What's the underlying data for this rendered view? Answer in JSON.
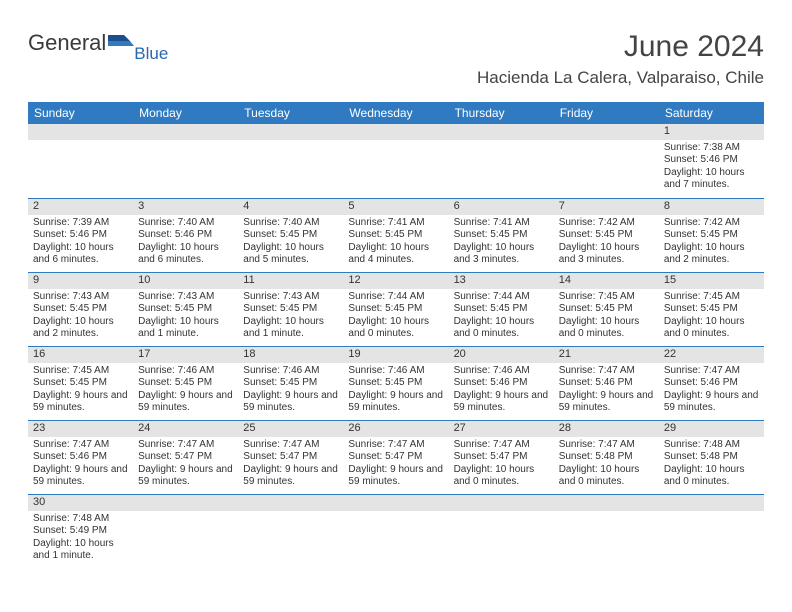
{
  "brand": {
    "main": "General",
    "sub": "Blue"
  },
  "title": "June 2024",
  "location": "Hacienda La Calera, Valparaiso, Chile",
  "colors": {
    "header_bg": "#2f7ac0",
    "header_fg": "#ffffff",
    "daynum_bg": "#e4e4e4",
    "text": "#333333",
    "brand_blue": "#2968b2"
  },
  "weekdays": [
    "Sunday",
    "Monday",
    "Tuesday",
    "Wednesday",
    "Thursday",
    "Friday",
    "Saturday"
  ],
  "weeks": [
    [
      null,
      null,
      null,
      null,
      null,
      null,
      {
        "n": "1",
        "sr": "Sunrise: 7:38 AM",
        "ss": "Sunset: 5:46 PM",
        "dl": "Daylight: 10 hours and 7 minutes."
      }
    ],
    [
      {
        "n": "2",
        "sr": "Sunrise: 7:39 AM",
        "ss": "Sunset: 5:46 PM",
        "dl": "Daylight: 10 hours and 6 minutes."
      },
      {
        "n": "3",
        "sr": "Sunrise: 7:40 AM",
        "ss": "Sunset: 5:46 PM",
        "dl": "Daylight: 10 hours and 6 minutes."
      },
      {
        "n": "4",
        "sr": "Sunrise: 7:40 AM",
        "ss": "Sunset: 5:45 PM",
        "dl": "Daylight: 10 hours and 5 minutes."
      },
      {
        "n": "5",
        "sr": "Sunrise: 7:41 AM",
        "ss": "Sunset: 5:45 PM",
        "dl": "Daylight: 10 hours and 4 minutes."
      },
      {
        "n": "6",
        "sr": "Sunrise: 7:41 AM",
        "ss": "Sunset: 5:45 PM",
        "dl": "Daylight: 10 hours and 3 minutes."
      },
      {
        "n": "7",
        "sr": "Sunrise: 7:42 AM",
        "ss": "Sunset: 5:45 PM",
        "dl": "Daylight: 10 hours and 3 minutes."
      },
      {
        "n": "8",
        "sr": "Sunrise: 7:42 AM",
        "ss": "Sunset: 5:45 PM",
        "dl": "Daylight: 10 hours and 2 minutes."
      }
    ],
    [
      {
        "n": "9",
        "sr": "Sunrise: 7:43 AM",
        "ss": "Sunset: 5:45 PM",
        "dl": "Daylight: 10 hours and 2 minutes."
      },
      {
        "n": "10",
        "sr": "Sunrise: 7:43 AM",
        "ss": "Sunset: 5:45 PM",
        "dl": "Daylight: 10 hours and 1 minute."
      },
      {
        "n": "11",
        "sr": "Sunrise: 7:43 AM",
        "ss": "Sunset: 5:45 PM",
        "dl": "Daylight: 10 hours and 1 minute."
      },
      {
        "n": "12",
        "sr": "Sunrise: 7:44 AM",
        "ss": "Sunset: 5:45 PM",
        "dl": "Daylight: 10 hours and 0 minutes."
      },
      {
        "n": "13",
        "sr": "Sunrise: 7:44 AM",
        "ss": "Sunset: 5:45 PM",
        "dl": "Daylight: 10 hours and 0 minutes."
      },
      {
        "n": "14",
        "sr": "Sunrise: 7:45 AM",
        "ss": "Sunset: 5:45 PM",
        "dl": "Daylight: 10 hours and 0 minutes."
      },
      {
        "n": "15",
        "sr": "Sunrise: 7:45 AM",
        "ss": "Sunset: 5:45 PM",
        "dl": "Daylight: 10 hours and 0 minutes."
      }
    ],
    [
      {
        "n": "16",
        "sr": "Sunrise: 7:45 AM",
        "ss": "Sunset: 5:45 PM",
        "dl": "Daylight: 9 hours and 59 minutes."
      },
      {
        "n": "17",
        "sr": "Sunrise: 7:46 AM",
        "ss": "Sunset: 5:45 PM",
        "dl": "Daylight: 9 hours and 59 minutes."
      },
      {
        "n": "18",
        "sr": "Sunrise: 7:46 AM",
        "ss": "Sunset: 5:45 PM",
        "dl": "Daylight: 9 hours and 59 minutes."
      },
      {
        "n": "19",
        "sr": "Sunrise: 7:46 AM",
        "ss": "Sunset: 5:45 PM",
        "dl": "Daylight: 9 hours and 59 minutes."
      },
      {
        "n": "20",
        "sr": "Sunrise: 7:46 AM",
        "ss": "Sunset: 5:46 PM",
        "dl": "Daylight: 9 hours and 59 minutes."
      },
      {
        "n": "21",
        "sr": "Sunrise: 7:47 AM",
        "ss": "Sunset: 5:46 PM",
        "dl": "Daylight: 9 hours and 59 minutes."
      },
      {
        "n": "22",
        "sr": "Sunrise: 7:47 AM",
        "ss": "Sunset: 5:46 PM",
        "dl": "Daylight: 9 hours and 59 minutes."
      }
    ],
    [
      {
        "n": "23",
        "sr": "Sunrise: 7:47 AM",
        "ss": "Sunset: 5:46 PM",
        "dl": "Daylight: 9 hours and 59 minutes."
      },
      {
        "n": "24",
        "sr": "Sunrise: 7:47 AM",
        "ss": "Sunset: 5:47 PM",
        "dl": "Daylight: 9 hours and 59 minutes."
      },
      {
        "n": "25",
        "sr": "Sunrise: 7:47 AM",
        "ss": "Sunset: 5:47 PM",
        "dl": "Daylight: 9 hours and 59 minutes."
      },
      {
        "n": "26",
        "sr": "Sunrise: 7:47 AM",
        "ss": "Sunset: 5:47 PM",
        "dl": "Daylight: 9 hours and 59 minutes."
      },
      {
        "n": "27",
        "sr": "Sunrise: 7:47 AM",
        "ss": "Sunset: 5:47 PM",
        "dl": "Daylight: 10 hours and 0 minutes."
      },
      {
        "n": "28",
        "sr": "Sunrise: 7:47 AM",
        "ss": "Sunset: 5:48 PM",
        "dl": "Daylight: 10 hours and 0 minutes."
      },
      {
        "n": "29",
        "sr": "Sunrise: 7:48 AM",
        "ss": "Sunset: 5:48 PM",
        "dl": "Daylight: 10 hours and 0 minutes."
      }
    ],
    [
      {
        "n": "30",
        "sr": "Sunrise: 7:48 AM",
        "ss": "Sunset: 5:49 PM",
        "dl": "Daylight: 10 hours and 1 minute."
      },
      null,
      null,
      null,
      null,
      null,
      null
    ]
  ]
}
